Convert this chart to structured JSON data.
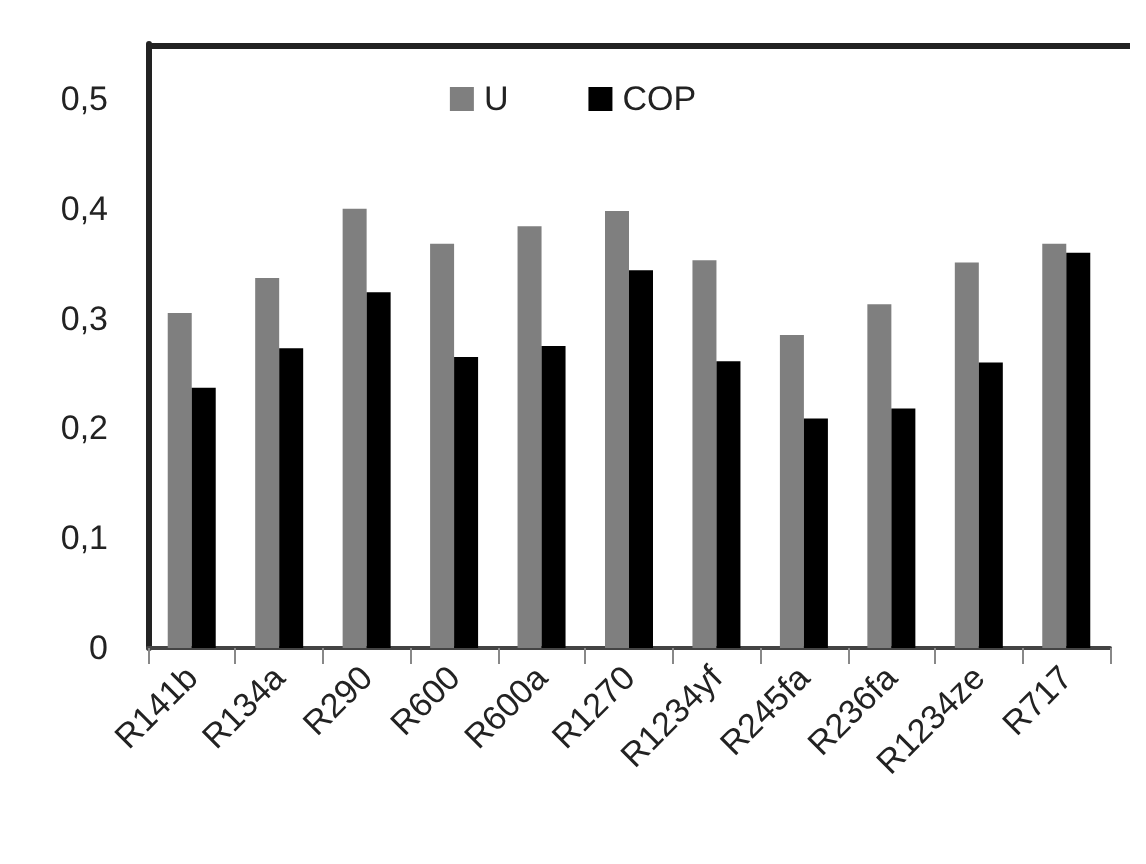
{
  "chart_data": {
    "type": "bar",
    "categories": [
      "R141b",
      "R134a",
      "R290",
      "R600",
      "R600a",
      "R1270",
      "R1234yf",
      "R245fa",
      "R236fa",
      "R1234ze",
      "R717"
    ],
    "series": [
      {
        "name": "U",
        "color": "#7f7f7f",
        "values": [
          0.305,
          0.337,
          0.4,
          0.368,
          0.384,
          0.398,
          0.353,
          0.285,
          0.313,
          0.351,
          0.368
        ]
      },
      {
        "name": "COP",
        "color": "#000000",
        "values": [
          0.237,
          0.273,
          0.324,
          0.265,
          0.275,
          0.344,
          0.261,
          0.209,
          0.218,
          0.26,
          0.36
        ]
      }
    ],
    "ylim": [
      0,
      0.55
    ],
    "yticks": [
      {
        "value": 0,
        "label": "0"
      },
      {
        "value": 0.1,
        "label": "0,1"
      },
      {
        "value": 0.2,
        "label": "0,2"
      },
      {
        "value": 0.3,
        "label": "0,3"
      },
      {
        "value": 0.4,
        "label": "0,4"
      },
      {
        "value": 0.5,
        "label": "0,5"
      }
    ],
    "grid": false,
    "legend": "top"
  }
}
